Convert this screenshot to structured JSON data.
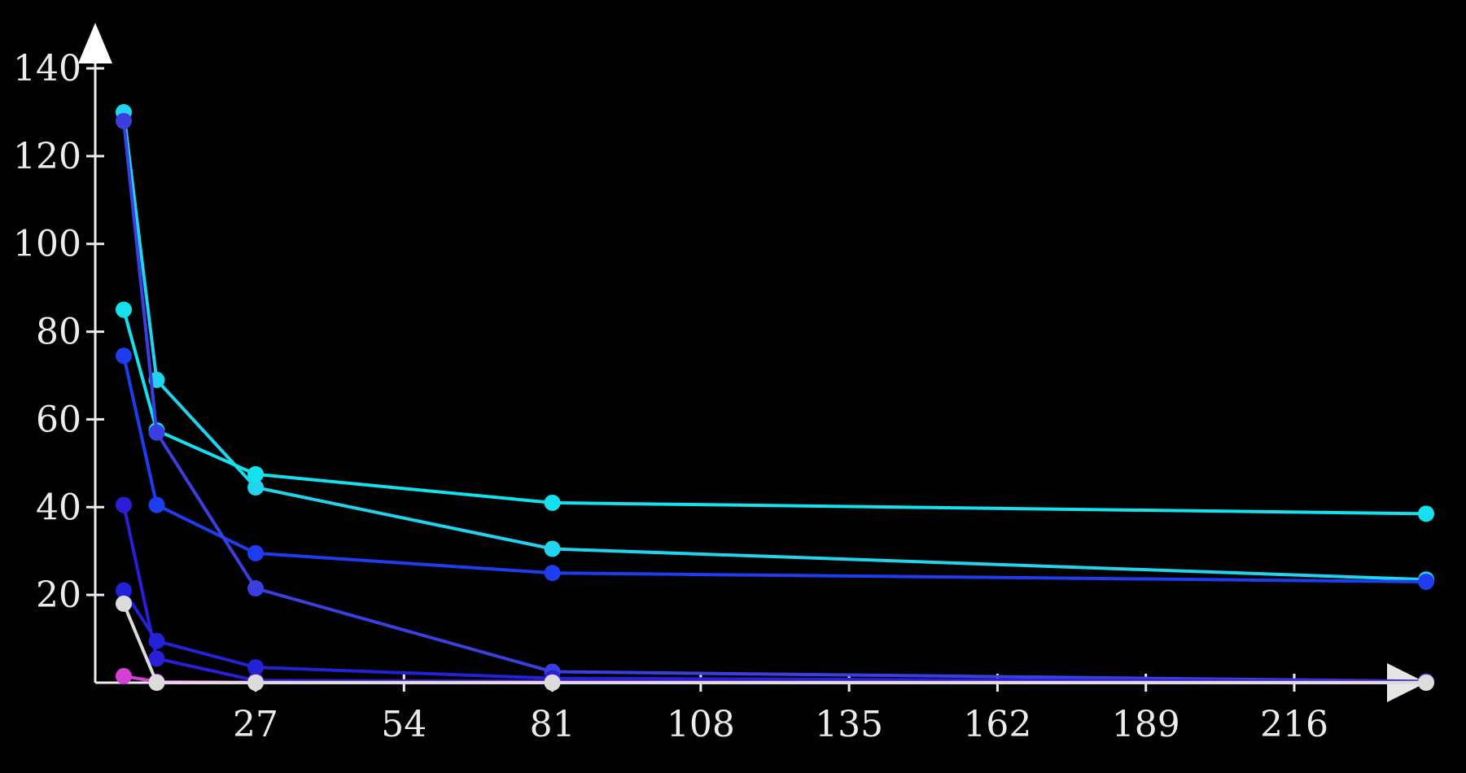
{
  "chart_data": {
    "type": "line",
    "title": "",
    "xlabel": "",
    "ylabel": "",
    "xlim": [
      -2,
      243
    ],
    "ylim": [
      0,
      140
    ],
    "x_ticks": [
      27,
      54,
      81,
      108,
      135,
      162,
      189,
      216
    ],
    "y_ticks": [
      20,
      40,
      60,
      80,
      100,
      120,
      140
    ],
    "x_tick_labels": [
      "27",
      "54",
      "81",
      "108",
      "135",
      "162",
      "189",
      "216"
    ],
    "y_tick_labels": [
      "20",
      "40",
      "60",
      "80",
      "100",
      "120",
      "140"
    ],
    "grid": false,
    "legend": "none",
    "series": [
      {
        "color": "#22d3ee",
        "points": [
          [
            3,
            130
          ],
          [
            9,
            69
          ],
          [
            27,
            44.5
          ],
          [
            81,
            30.5
          ],
          [
            240,
            23.5
          ]
        ]
      },
      {
        "color": "#14e0ee",
        "points": [
          [
            3,
            85
          ],
          [
            9,
            57.5
          ],
          [
            27,
            47.5
          ],
          [
            81,
            41
          ],
          [
            240,
            38.5
          ]
        ]
      },
      {
        "color": "#1e3cf0",
        "points": [
          [
            3,
            74.5
          ],
          [
            9,
            40.5
          ],
          [
            27,
            29.5
          ],
          [
            81,
            25
          ],
          [
            240,
            23
          ]
        ]
      },
      {
        "color": "#3b3fe0",
        "points": [
          [
            3,
            128
          ],
          [
            9,
            57
          ],
          [
            27,
            21.5
          ],
          [
            81,
            2.5
          ],
          [
            240,
            0.3
          ]
        ]
      },
      {
        "color": "#2a1ed8",
        "points": [
          [
            3,
            40.5
          ],
          [
            9,
            5.5
          ],
          [
            27,
            0.5
          ],
          [
            81,
            0.3
          ],
          [
            240,
            0.1
          ]
        ]
      },
      {
        "color": "#2322d8",
        "points": [
          [
            3,
            21
          ],
          [
            9,
            9.5
          ],
          [
            27,
            3.5
          ],
          [
            81,
            1
          ],
          [
            240,
            0.2
          ]
        ]
      },
      {
        "color": "#d63fd6",
        "points": [
          [
            3,
            1.5
          ],
          [
            9,
            0.2
          ],
          [
            27,
            0.1
          ],
          [
            81,
            0.1
          ],
          [
            240,
            0.1
          ]
        ]
      },
      {
        "color": "#dcdcdc",
        "points": [
          [
            3,
            18
          ],
          [
            9,
            0
          ],
          [
            27,
            0
          ],
          [
            81,
            0
          ],
          [
            240,
            0
          ]
        ]
      }
    ]
  }
}
